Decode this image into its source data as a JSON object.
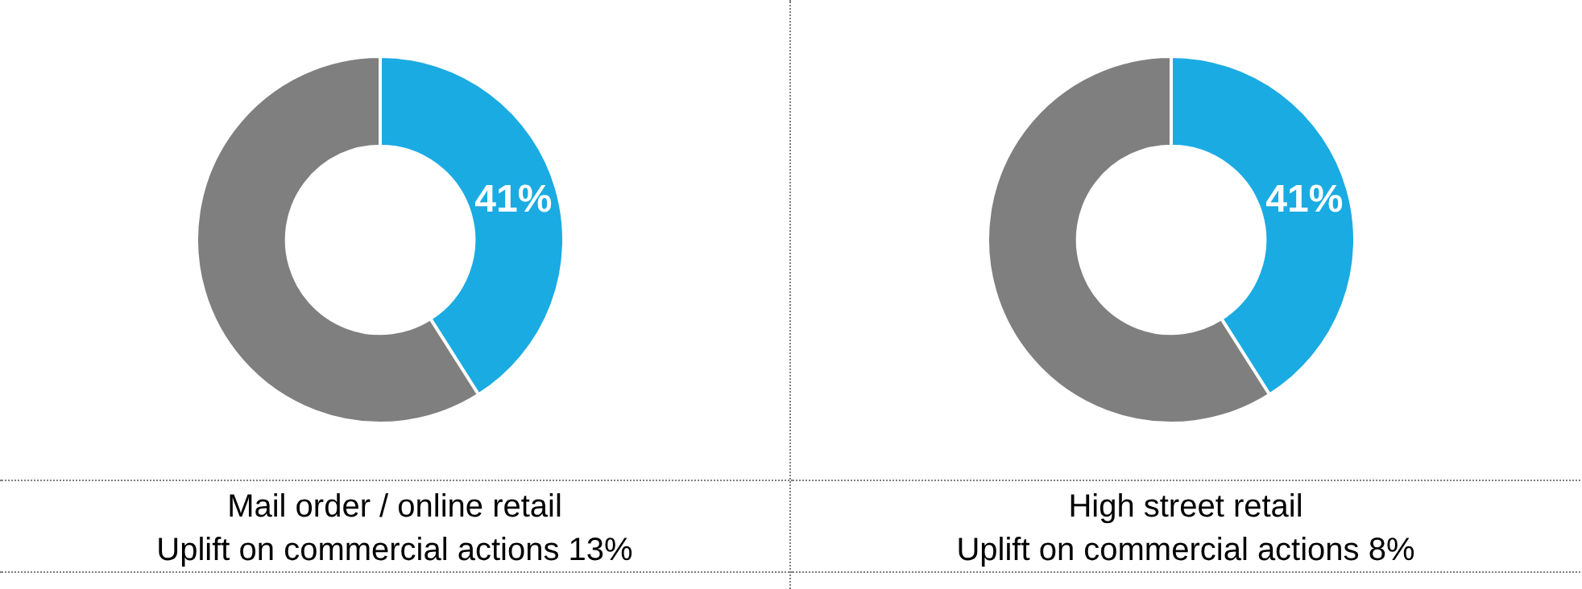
{
  "chart_data": [
    {
      "type": "donut",
      "title": "Mail order / online retail",
      "subtitle": "Uplift on commercial actions 13%",
      "categories": [
        null,
        null
      ],
      "values": [
        41,
        59
      ],
      "colors": [
        "#1aabe2",
        "#7f7f7f"
      ],
      "value_labels": [
        "41%",
        null
      ],
      "legend": false
    },
    {
      "type": "donut",
      "title": "High street retail",
      "subtitle": "Uplift on commercial actions 8%",
      "categories": [
        null,
        null
      ],
      "values": [
        41,
        59
      ],
      "colors": [
        "#1aabe2",
        "#7f7f7f"
      ],
      "value_labels": [
        "41%",
        null
      ],
      "legend": false
    }
  ]
}
